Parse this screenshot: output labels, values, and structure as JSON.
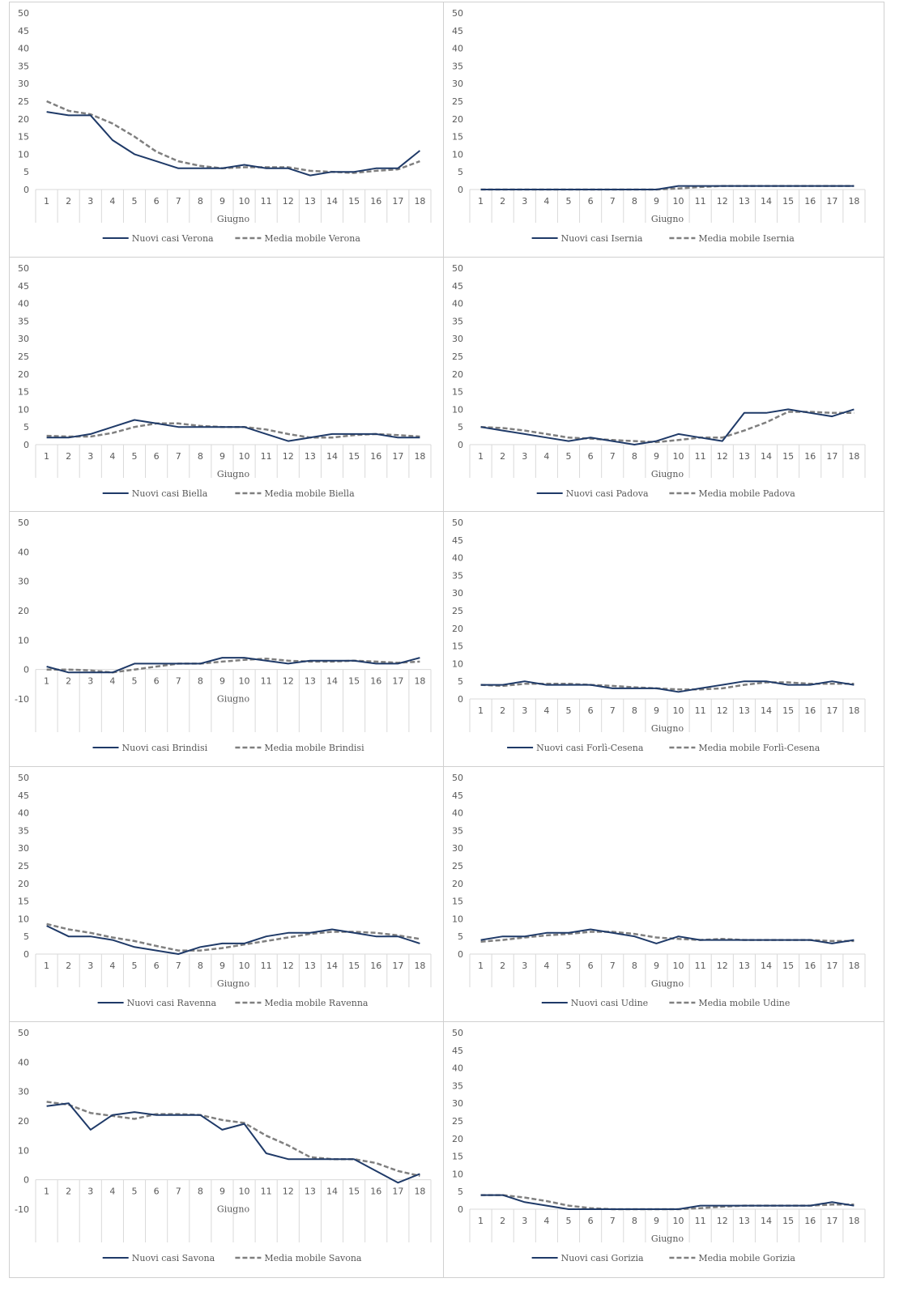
{
  "colors": {
    "nuovi": "#1f3a68",
    "media": "#7f7f7f",
    "grid": "#d9d9d9",
    "text": "#595959"
  },
  "chart_data": [
    {
      "type": "line",
      "xlabel": "Giugno",
      "x": [
        1,
        2,
        3,
        4,
        5,
        6,
        7,
        8,
        9,
        10,
        11,
        12,
        13,
        14,
        15,
        16,
        17,
        18
      ],
      "ylim": [
        0,
        50
      ],
      "yticks": [
        0,
        5,
        10,
        15,
        20,
        25,
        30,
        35,
        40,
        45,
        50
      ],
      "series": [
        {
          "name": "Nuovi casi Verona",
          "style": "solid",
          "values": [
            22,
            21,
            21,
            14,
            10,
            8,
            6,
            6,
            6,
            7,
            6,
            6,
            4,
            5,
            5,
            6,
            6,
            11
          ]
        },
        {
          "name": "Media mobile Verona",
          "style": "dashed",
          "values": [
            25,
            22.3,
            21.3,
            18.7,
            15,
            10.7,
            8,
            6.7,
            6,
            6.3,
            6.3,
            6.3,
            5.3,
            5,
            4.7,
            5.3,
            5.7,
            8
          ]
        }
      ]
    },
    {
      "type": "line",
      "xlabel": "Giugno",
      "x": [
        1,
        2,
        3,
        4,
        5,
        6,
        7,
        8,
        9,
        10,
        11,
        12,
        13,
        14,
        15,
        16,
        17,
        18
      ],
      "ylim": [
        0,
        50
      ],
      "yticks": [
        0,
        5,
        10,
        15,
        20,
        25,
        30,
        35,
        40,
        45,
        50
      ],
      "series": [
        {
          "name": "Nuovi casi Isernia",
          "style": "solid",
          "values": [
            0,
            0,
            0,
            0,
            0,
            0,
            0,
            0,
            0,
            1,
            1,
            1,
            1,
            1,
            1,
            1,
            1,
            1
          ]
        },
        {
          "name": "Media mobile Isernia",
          "style": "dashed",
          "values": [
            0,
            0,
            0,
            0,
            0,
            0,
            0,
            0,
            0,
            0.3,
            0.7,
            1,
            1,
            1,
            1,
            1,
            1,
            1
          ]
        }
      ]
    },
    {
      "type": "line",
      "xlabel": "Giugno",
      "x": [
        1,
        2,
        3,
        4,
        5,
        6,
        7,
        8,
        9,
        10,
        11,
        12,
        13,
        14,
        15,
        16,
        17,
        18
      ],
      "ylim": [
        0,
        50
      ],
      "yticks": [
        0,
        5,
        10,
        15,
        20,
        25,
        30,
        35,
        40,
        45,
        50
      ],
      "series": [
        {
          "name": "Nuovi casi Biella",
          "style": "solid",
          "values": [
            2,
            2,
            3,
            5,
            7,
            6,
            5,
            5,
            5,
            5,
            3,
            1,
            2,
            3,
            3,
            3,
            2,
            2
          ]
        },
        {
          "name": "Media mobile Biella",
          "style": "dashed",
          "values": [
            2.5,
            2.3,
            2.3,
            3.3,
            5,
            6,
            6,
            5.3,
            5,
            5,
            4.3,
            3,
            2,
            2,
            2.7,
            3,
            2.7,
            2.3
          ]
        }
      ]
    },
    {
      "type": "line",
      "xlabel": "Giugno",
      "x": [
        1,
        2,
        3,
        4,
        5,
        6,
        7,
        8,
        9,
        10,
        11,
        12,
        13,
        14,
        15,
        16,
        17,
        18
      ],
      "ylim": [
        0,
        50
      ],
      "yticks": [
        0,
        5,
        10,
        15,
        20,
        25,
        30,
        35,
        40,
        45,
        50
      ],
      "series": [
        {
          "name": "Nuovi casi Padova",
          "style": "solid",
          "values": [
            5,
            4,
            3,
            2,
            1,
            2,
            1,
            0,
            1,
            3,
            2,
            1,
            9,
            9,
            10,
            9,
            8,
            10
          ]
        },
        {
          "name": "Media mobile Padova",
          "style": "dashed",
          "values": [
            5,
            4.7,
            4,
            3,
            2,
            1.7,
            1.3,
            1,
            0.7,
            1.3,
            2,
            2,
            4,
            6.3,
            9.3,
            9.3,
            9,
            9
          ]
        }
      ]
    },
    {
      "type": "line",
      "xlabel": "Giugno",
      "x": [
        1,
        2,
        3,
        4,
        5,
        6,
        7,
        8,
        9,
        10,
        11,
        12,
        13,
        14,
        15,
        16,
        17,
        18
      ],
      "ylim": [
        -10,
        50
      ],
      "yticks": [
        -10,
        0,
        10,
        20,
        30,
        40,
        50
      ],
      "series": [
        {
          "name": "Nuovi casi Brindisi",
          "style": "solid",
          "values": [
            1,
            -1,
            -1,
            -1,
            2,
            2,
            2,
            2,
            4,
            4,
            3,
            2,
            3,
            3,
            3,
            2,
            2,
            4
          ]
        },
        {
          "name": "Media mobile Brindisi",
          "style": "dashed",
          "values": [
            0,
            0,
            -0.3,
            -1,
            0,
            1,
            2,
            2,
            2.7,
            3.3,
            3.7,
            3,
            2.7,
            2.7,
            3,
            2.7,
            2.3,
            2.7
          ]
        }
      ]
    },
    {
      "type": "line",
      "xlabel": "Giugno",
      "x": [
        1,
        2,
        3,
        4,
        5,
        6,
        7,
        8,
        9,
        10,
        11,
        12,
        13,
        14,
        15,
        16,
        17,
        18
      ],
      "ylim": [
        0,
        50
      ],
      "yticks": [
        0,
        5,
        10,
        15,
        20,
        25,
        30,
        35,
        40,
        45,
        50
      ],
      "series": [
        {
          "name": "Nuovi casi Forlì-Cesena",
          "style": "solid",
          "values": [
            4,
            4,
            5,
            4,
            4,
            4,
            3,
            3,
            3,
            2,
            3,
            4,
            5,
            5,
            4,
            4,
            5,
            4
          ]
        },
        {
          "name": "Media mobile Forlì-Cesena",
          "style": "dashed",
          "values": [
            4,
            3.7,
            4.3,
            4.3,
            4.3,
            4,
            3.7,
            3.3,
            3,
            2.7,
            2.7,
            3,
            4,
            4.7,
            4.7,
            4.3,
            4.3,
            4.3
          ]
        }
      ]
    },
    {
      "type": "line",
      "xlabel": "Giugno",
      "x": [
        1,
        2,
        3,
        4,
        5,
        6,
        7,
        8,
        9,
        10,
        11,
        12,
        13,
        14,
        15,
        16,
        17,
        18
      ],
      "ylim": [
        0,
        50
      ],
      "yticks": [
        0,
        5,
        10,
        15,
        20,
        25,
        30,
        35,
        40,
        45,
        50
      ],
      "series": [
        {
          "name": "Nuovi casi Ravenna",
          "style": "solid",
          "values": [
            8,
            5,
            5,
            4,
            2,
            1,
            0,
            2,
            3,
            3,
            5,
            6,
            6,
            7,
            6,
            5,
            5,
            3
          ]
        },
        {
          "name": "Media mobile Ravenna",
          "style": "dashed",
          "values": [
            8.5,
            7,
            6,
            4.7,
            3.7,
            2.3,
            1,
            1,
            1.7,
            2.7,
            3.7,
            4.7,
            5.7,
            6.3,
            6.3,
            6,
            5.3,
            4.3
          ]
        }
      ]
    },
    {
      "type": "line",
      "xlabel": "Giugno",
      "x": [
        1,
        2,
        3,
        4,
        5,
        6,
        7,
        8,
        9,
        10,
        11,
        12,
        13,
        14,
        15,
        16,
        17,
        18
      ],
      "ylim": [
        0,
        50
      ],
      "yticks": [
        0,
        5,
        10,
        15,
        20,
        25,
        30,
        35,
        40,
        45,
        50
      ],
      "series": [
        {
          "name": "Nuovi casi Udine",
          "style": "solid",
          "values": [
            4,
            5,
            5,
            6,
            6,
            7,
            6,
            5,
            3,
            5,
            4,
            4,
            4,
            4,
            4,
            4,
            3,
            4
          ]
        },
        {
          "name": "Media mobile Udine",
          "style": "dashed",
          "values": [
            3.5,
            4,
            4.7,
            5.3,
            5.7,
            6.3,
            6.3,
            5.7,
            4.7,
            4.3,
            4,
            4.3,
            4,
            4,
            4,
            4,
            3.7,
            3.7
          ]
        }
      ]
    },
    {
      "type": "line",
      "xlabel": "Giugno",
      "x": [
        1,
        2,
        3,
        4,
        5,
        6,
        7,
        8,
        9,
        10,
        11,
        12,
        13,
        14,
        15,
        16,
        17,
        18
      ],
      "ylim": [
        -10,
        50
      ],
      "yticks": [
        -10,
        0,
        10,
        20,
        30,
        40,
        50
      ],
      "series": [
        {
          "name": "Nuovi casi Savona",
          "style": "solid",
          "values": [
            25,
            26,
            17,
            22,
            23,
            22,
            22,
            22,
            17,
            19,
            9,
            7,
            7,
            7,
            7,
            3,
            -1,
            2
          ]
        },
        {
          "name": "Media mobile Savona",
          "style": "dashed",
          "values": [
            26.5,
            25.5,
            22.7,
            21.7,
            20.7,
            22.3,
            22.3,
            22,
            20.3,
            19.3,
            15,
            11.7,
            7.7,
            7,
            7,
            5.7,
            3,
            1.3
          ]
        }
      ]
    },
    {
      "type": "line",
      "xlabel": "Giugno",
      "x": [
        1,
        2,
        3,
        4,
        5,
        6,
        7,
        8,
        9,
        10,
        11,
        12,
        13,
        14,
        15,
        16,
        17,
        18
      ],
      "ylim": [
        0,
        50
      ],
      "yticks": [
        0,
        5,
        10,
        15,
        20,
        25,
        30,
        35,
        40,
        45,
        50
      ],
      "series": [
        {
          "name": "Nuovi casi Gorizia",
          "style": "solid",
          "values": [
            4,
            4,
            2,
            1,
            0,
            0,
            0,
            0,
            0,
            0,
            1,
            1,
            1,
            1,
            1,
            1,
            2,
            1
          ]
        },
        {
          "name": "Media mobile Gorizia",
          "style": "dashed",
          "values": [
            4,
            4,
            3.3,
            2.3,
            1,
            0.3,
            0,
            0,
            0,
            0,
            0.3,
            0.7,
            1,
            1,
            1,
            1,
            1.3,
            1.3
          ]
        }
      ]
    }
  ]
}
